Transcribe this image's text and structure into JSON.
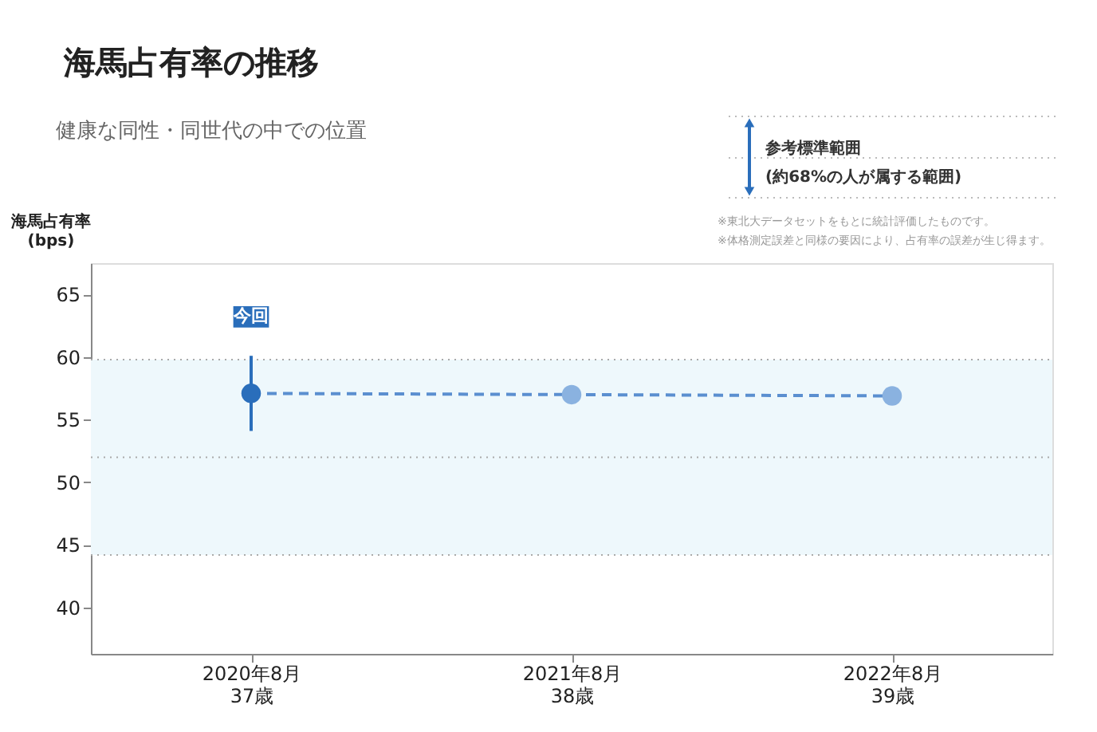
{
  "chart_data": {
    "type": "line",
    "title": "海馬占有率の推移",
    "subtitle": "健康な同性・同世代の中での位置",
    "ylabel": "海馬占有率\n(bps)",
    "categories": [
      "2020年8月\n37歳",
      "2021年8月\n38歳",
      "2022年8月\n39歳"
    ],
    "series": [
      {
        "color": "#5b8fd0",
        "colors": [
          "#2a6ebb",
          "#8ab2e0",
          "#8ab2e0"
        ],
        "values": [
          57.1,
          57.0,
          56.9
        ],
        "errors": [
          [
            54.1,
            60.1
          ],
          null,
          null
        ]
      }
    ],
    "ylim": [
      36.3,
      67.5
    ],
    "yticks": [
      40,
      45,
      50,
      55,
      60,
      65
    ],
    "bands": [
      {
        "axis": "y",
        "from": 44.2,
        "to": 59.8,
        "color": "#eef8fc"
      }
    ],
    "ref_lines": [
      {
        "axis": "y",
        "value": 52.0,
        "line_style": "dotted"
      }
    ],
    "annotations": [
      "今回",
      "参考標準範囲\n(約68%の人が属する範囲)",
      "※東北大データセットをもとに統計評価したものです。",
      "※体格測定誤差と同様の要因により、占有率の誤差が生じ得ます。"
    ],
    "marker": "circle",
    "line_style": "dashed"
  }
}
